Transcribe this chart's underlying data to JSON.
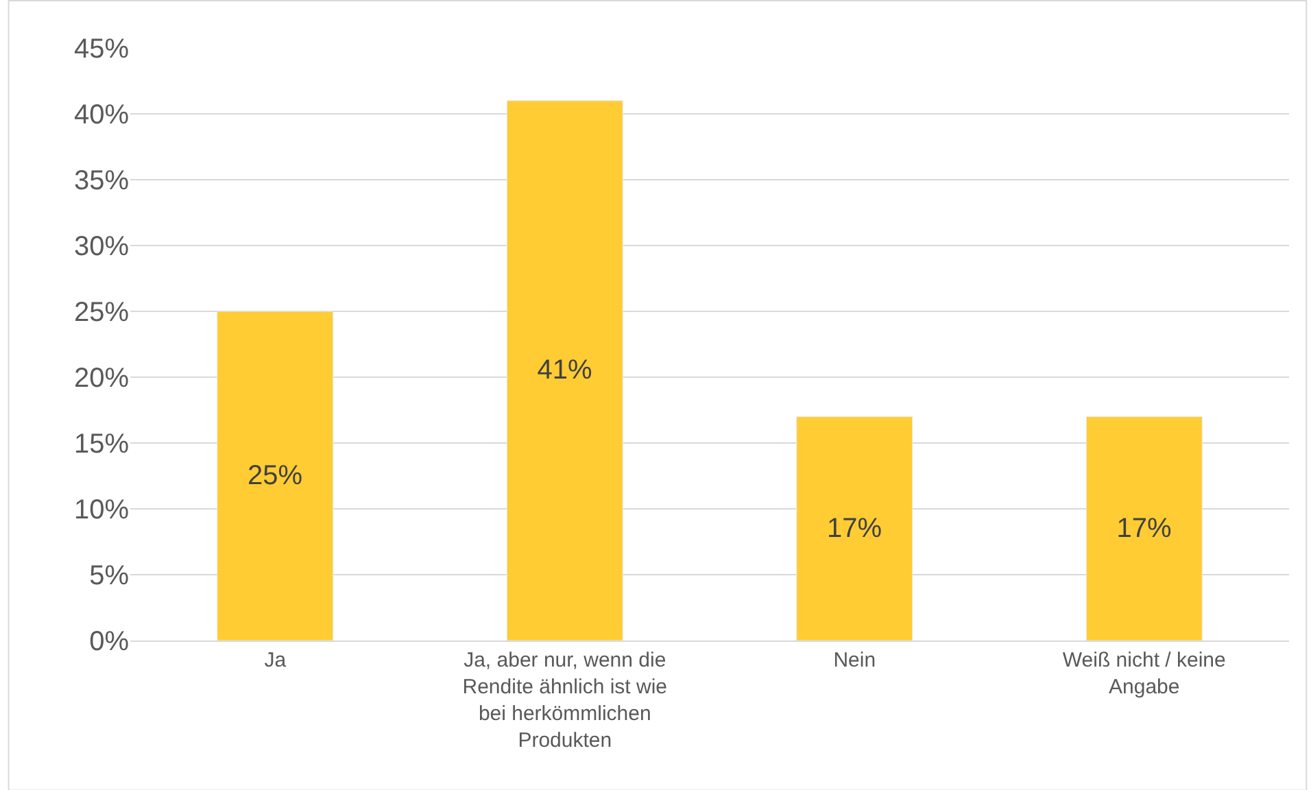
{
  "chart_data": {
    "type": "bar",
    "categories": [
      "Ja",
      "Ja, aber nur, wenn die Rendite ähnlich ist wie bei herkömmlichen Produkten",
      "Nein",
      "Weiß nicht / keine Angabe"
    ],
    "values": [
      25,
      41,
      17,
      17
    ],
    "value_labels": [
      "25%",
      "41%",
      "17%",
      "17%"
    ],
    "color": "#ffcc33",
    "ylim": [
      0,
      45
    ],
    "yticks": [
      {
        "value": 0,
        "label": "0%"
      },
      {
        "value": 5,
        "label": "5%"
      },
      {
        "value": 10,
        "label": "10%"
      },
      {
        "value": 15,
        "label": "15%"
      },
      {
        "value": 20,
        "label": "20%"
      },
      {
        "value": 25,
        "label": "25%"
      },
      {
        "value": 30,
        "label": "30%"
      },
      {
        "value": 35,
        "label": "35%"
      },
      {
        "value": 40,
        "label": "40%"
      },
      {
        "value": 45,
        "label": "45%"
      }
    ],
    "grid": "y"
  }
}
